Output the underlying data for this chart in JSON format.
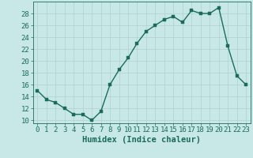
{
  "x": [
    0,
    1,
    2,
    3,
    4,
    5,
    6,
    7,
    8,
    9,
    10,
    11,
    12,
    13,
    14,
    15,
    16,
    17,
    18,
    19,
    20,
    21,
    22,
    23
  ],
  "y": [
    15,
    13.5,
    13,
    12,
    11,
    11,
    10,
    11.5,
    16,
    18.5,
    20.5,
    23,
    25,
    26,
    27,
    27.5,
    26.5,
    28.5,
    28,
    28,
    29,
    22.5,
    17.5,
    16
  ],
  "line_color": "#1a6b5a",
  "marker_color": "#1a6b5a",
  "bg_color": "#c8e8e8",
  "grid_color": "#b0d0d0",
  "xlabel": "Humidex (Indice chaleur)",
  "xlim": [
    -0.5,
    23.5
  ],
  "ylim": [
    9.5,
    30.0
  ],
  "yticks": [
    10,
    12,
    14,
    16,
    18,
    20,
    22,
    24,
    26,
    28
  ],
  "xticks": [
    0,
    1,
    2,
    3,
    4,
    5,
    6,
    7,
    8,
    9,
    10,
    11,
    12,
    13,
    14,
    15,
    16,
    17,
    18,
    19,
    20,
    21,
    22,
    23
  ],
  "xlabel_fontsize": 7.5,
  "tick_fontsize": 6.5,
  "line_width": 1.0,
  "marker_size": 2.5
}
